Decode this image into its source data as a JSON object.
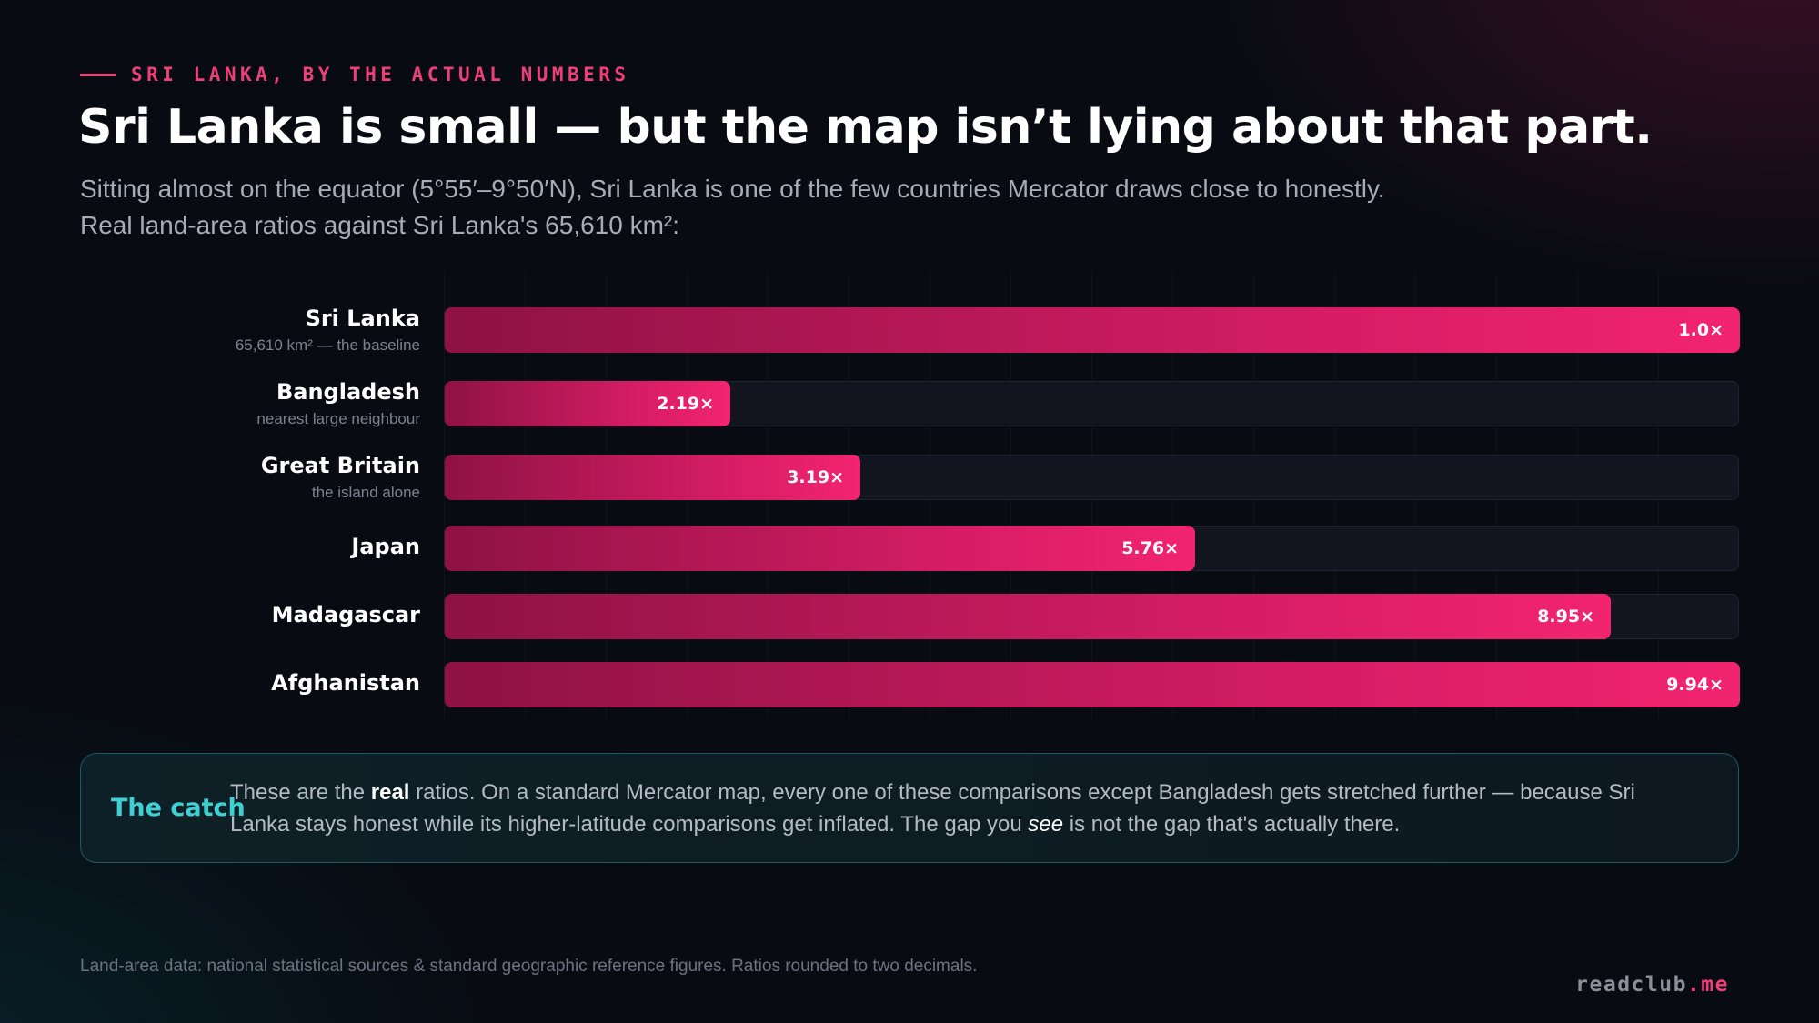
{
  "header": {
    "eyebrow": "SRI LANKA, BY THE ACTUAL NUMBERS",
    "title": "Sri Lanka is small — but the map isn’t lying about that part.",
    "subtitle": "Sitting almost on the equator (5°55′–9°50′N), Sri Lanka is one of the few countries Mercator draws close to honestly. Real land-area ratios against Sri Lanka's 65,610 km²:"
  },
  "chart_data": {
    "type": "bar",
    "orientation": "horizontal",
    "categories": [
      "Sri Lanka",
      "Bangladesh",
      "Great Britain",
      "Japan",
      "Madagascar",
      "Afghanistan"
    ],
    "notes": [
      "65,610 km² — the baseline",
      "nearest large neighbour",
      "the island alone",
      "",
      "",
      ""
    ],
    "values": [
      1.0,
      2.19,
      3.19,
      5.76,
      8.95,
      9.94
    ],
    "value_labels": [
      "1.0×",
      "2.19×",
      "3.19×",
      "5.76×",
      "8.95×",
      "9.94×"
    ],
    "xlim": [
      0,
      9.94
    ],
    "grid": true,
    "bar_color": "#e91e63"
  },
  "callout": {
    "label": "The catch",
    "text_before": "These are the ",
    "text_bold": "real",
    "text_middle": " ratios. On a standard Mercator map, every one of these comparisons except Bangladesh gets stretched further — because Sri Lanka stays honest while its higher-latitude comparisons get inflated. The gap you ",
    "text_italic": "see",
    "text_after": " is not the gap that's actually there."
  },
  "footer": {
    "source": "Land-area data: national statistical sources & standard geographic reference figures. Ratios rounded to two decimals.",
    "brand_name": "readclub",
    "brand_tld": ".me"
  },
  "colors": {
    "accent": "#ee3f7a",
    "callout_accent": "#3fd0d4",
    "background": "#080b12"
  }
}
